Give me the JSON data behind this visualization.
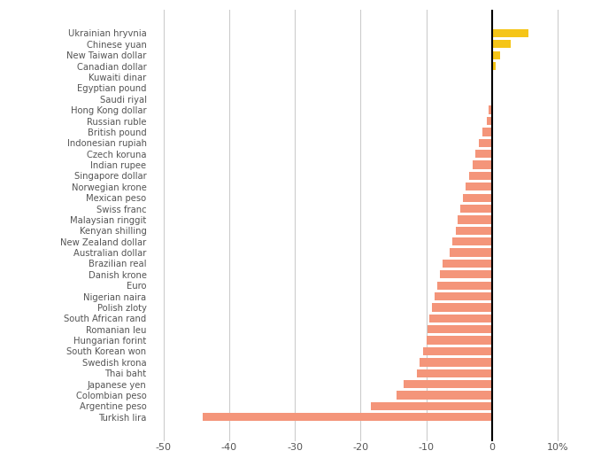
{
  "currencies": [
    "Ukrainian hryvnia",
    "Chinese yuan",
    "New Taiwan dollar",
    "Canadian dollar",
    "Kuwaiti dinar",
    "Egyptian pound",
    "Saudi riyal",
    "Hong Kong dollar",
    "Russian ruble",
    "British pound",
    "Indonesian rupiah",
    "Czech koruna",
    "Indian rupee",
    "Singapore dollar",
    "Norwegian krone",
    "Mexican peso",
    "Swiss franc",
    "Malaysian ringgit",
    "Kenyan shilling",
    "New Zealand dollar",
    "Australian dollar",
    "Brazilian real",
    "Danish krone",
    "Euro",
    "Nigerian naira",
    "Polish zloty",
    "South African rand",
    "Romanian leu",
    "Hungarian forint",
    "South Korean won",
    "Swedish krona",
    "Thai baht",
    "Japanese yen",
    "Colombian peso",
    "Argentine peso",
    "Turkish lira"
  ],
  "values": [
    5.5,
    2.8,
    1.2,
    0.5,
    0.1,
    -0.1,
    -0.15,
    -0.5,
    -0.8,
    -1.5,
    -2.0,
    -2.5,
    -3.0,
    -3.5,
    -4.0,
    -4.5,
    -4.8,
    -5.2,
    -5.5,
    -6.0,
    -6.5,
    -7.5,
    -8.0,
    -8.3,
    -8.8,
    -9.2,
    -9.5,
    -9.8,
    -10.0,
    -10.5,
    -11.0,
    -11.5,
    -13.5,
    -14.5,
    -18.5,
    -44.0
  ],
  "positive_color": "#F5C518",
  "negative_color": "#F4957A",
  "background_color": "#FFFFFF",
  "grid_color": "#CCCCCC",
  "xlim": [
    -52,
    12
  ],
  "xticks": [
    -50,
    -40,
    -30,
    -20,
    -10,
    0,
    10
  ],
  "xtick_labels": [
    "-50",
    "-40",
    "-30",
    "-20",
    "-10",
    "0",
    "10%"
  ],
  "axis_label_color": "#555555",
  "bar_height": 0.75,
  "figsize": [
    6.79,
    5.35
  ],
  "dpi": 100
}
